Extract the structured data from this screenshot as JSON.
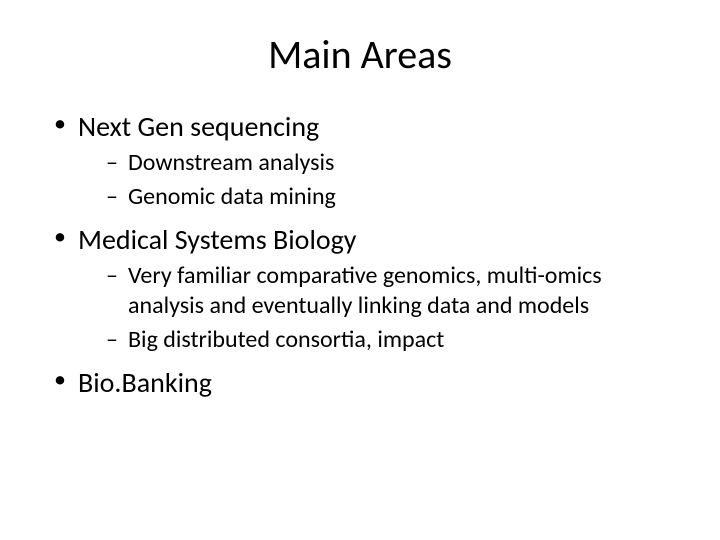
{
  "slide": {
    "title": "Main Areas",
    "background_color": "#ffffff",
    "text_color": "#000000",
    "title_fontsize": 40,
    "level1_fontsize": 28,
    "level2_fontsize": 24,
    "font_family": "Calibri",
    "bullets": [
      {
        "text": "Next Gen sequencing",
        "sub": [
          {
            "text": "Downstream analysis"
          },
          {
            "text": "Genomic data mining"
          }
        ]
      },
      {
        "text": "Medical Systems Biology",
        "sub": [
          {
            "text": "Very familiar comparative genomics, multi-omics analysis and eventually linking data and models"
          },
          {
            "text": "Big distributed consortia, impact"
          }
        ]
      },
      {
        "text": "Bio.Banking",
        "sub": []
      }
    ]
  }
}
